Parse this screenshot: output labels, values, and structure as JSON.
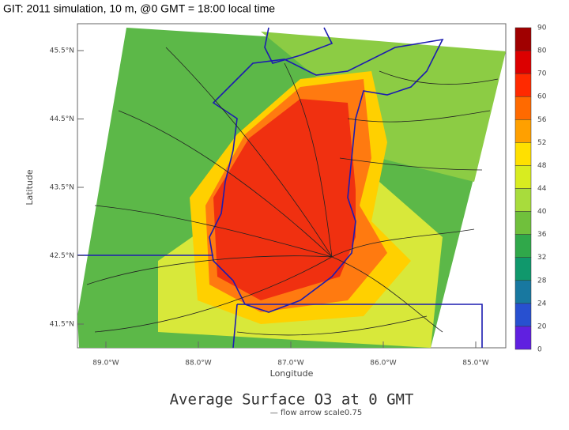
{
  "header": {
    "title": "GIT: 2011 simulation, 10 m, @0 GMT = 18:00 local time"
  },
  "map": {
    "y_axis": {
      "label": "Latitude",
      "ticks": [
        "45.5°N",
        "44.5°N",
        "43.5°N",
        "42.5°N",
        "41.5°N"
      ]
    },
    "x_axis": {
      "label": "Longitude",
      "ticks": [
        "89.0°W",
        "88.0°W",
        "87.0°W",
        "86.0°W",
        "85.0°W"
      ]
    },
    "colorbar": {
      "labels": [
        90,
        80,
        70,
        60,
        56,
        52,
        48,
        44,
        40,
        36,
        32,
        28,
        24,
        20,
        0
      ],
      "colors": [
        "#a00000",
        "#dc0000",
        "#ff2a00",
        "#ff6a00",
        "#ffa000",
        "#ffe000",
        "#d8ec20",
        "#a8dc3c",
        "#70c03c",
        "#30a84a",
        "#10986c",
        "#1878a0",
        "#2850d0",
        "#6020e0"
      ]
    },
    "caption": "Average Surface O3 at 0 GMT",
    "subcaption": "— flow arrow scale0.75"
  }
}
